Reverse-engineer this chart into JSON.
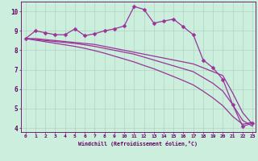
{
  "xlabel": "Windchill (Refroidissement éolien,°C)",
  "bg_color": "#cceedd",
  "line_color": "#993399",
  "grid_color": "#aaccbb",
  "axis_color": "#660066",
  "tick_color": "#660066",
  "xlim": [
    -0.5,
    23.3
  ],
  "ylim": [
    3.8,
    10.5
  ],
  "yticks": [
    4,
    5,
    6,
    7,
    8,
    9,
    10
  ],
  "xticks": [
    0,
    1,
    2,
    3,
    4,
    5,
    6,
    7,
    8,
    9,
    10,
    11,
    12,
    13,
    14,
    15,
    16,
    17,
    18,
    19,
    20,
    21,
    22,
    23
  ],
  "line1_x": [
    0,
    1,
    2,
    3,
    4,
    5,
    6,
    7,
    8,
    9,
    10,
    11,
    12,
    13,
    14,
    15,
    16,
    17,
    18,
    19,
    20,
    21,
    22,
    23
  ],
  "line1_y": [
    8.6,
    9.0,
    8.9,
    8.8,
    8.8,
    9.1,
    8.75,
    8.85,
    9.0,
    9.1,
    9.25,
    10.25,
    10.1,
    9.4,
    9.5,
    9.6,
    9.2,
    8.8,
    7.5,
    7.1,
    6.5,
    5.2,
    4.1,
    4.25
  ],
  "line2_x": [
    0,
    1,
    2,
    3,
    4,
    5,
    6,
    7,
    8,
    9,
    10,
    11,
    12,
    13,
    14,
    15,
    16,
    17,
    18,
    19,
    20,
    21,
    22,
    23
  ],
  "line2_y": [
    8.6,
    8.6,
    8.55,
    8.5,
    8.45,
    8.4,
    8.35,
    8.3,
    8.2,
    8.1,
    8.0,
    7.9,
    7.8,
    7.7,
    7.6,
    7.5,
    7.4,
    7.3,
    7.1,
    6.9,
    6.7,
    5.8,
    4.8,
    4.2
  ],
  "line3_x": [
    0,
    1,
    2,
    3,
    4,
    5,
    6,
    7,
    8,
    9,
    10,
    11,
    12,
    13,
    14,
    15,
    16,
    17,
    18,
    19,
    20,
    21,
    22,
    23
  ],
  "line3_y": [
    8.6,
    8.55,
    8.5,
    8.45,
    8.4,
    8.35,
    8.28,
    8.2,
    8.1,
    8.0,
    7.9,
    7.8,
    7.65,
    7.5,
    7.35,
    7.2,
    7.05,
    6.9,
    6.6,
    6.3,
    5.9,
    5.2,
    4.4,
    4.1
  ],
  "line4_x": [
    0,
    1,
    2,
    3,
    4,
    5,
    6,
    7,
    8,
    9,
    10,
    11,
    12,
    13,
    14,
    15,
    16,
    17,
    18,
    19,
    20,
    21,
    22,
    23
  ],
  "line4_y": [
    8.6,
    8.52,
    8.44,
    8.36,
    8.28,
    8.2,
    8.1,
    7.98,
    7.85,
    7.7,
    7.55,
    7.4,
    7.22,
    7.05,
    6.85,
    6.65,
    6.44,
    6.22,
    5.9,
    5.55,
    5.15,
    4.6,
    4.2,
    4.3
  ],
  "markersize": 2.5,
  "linewidth": 0.9
}
